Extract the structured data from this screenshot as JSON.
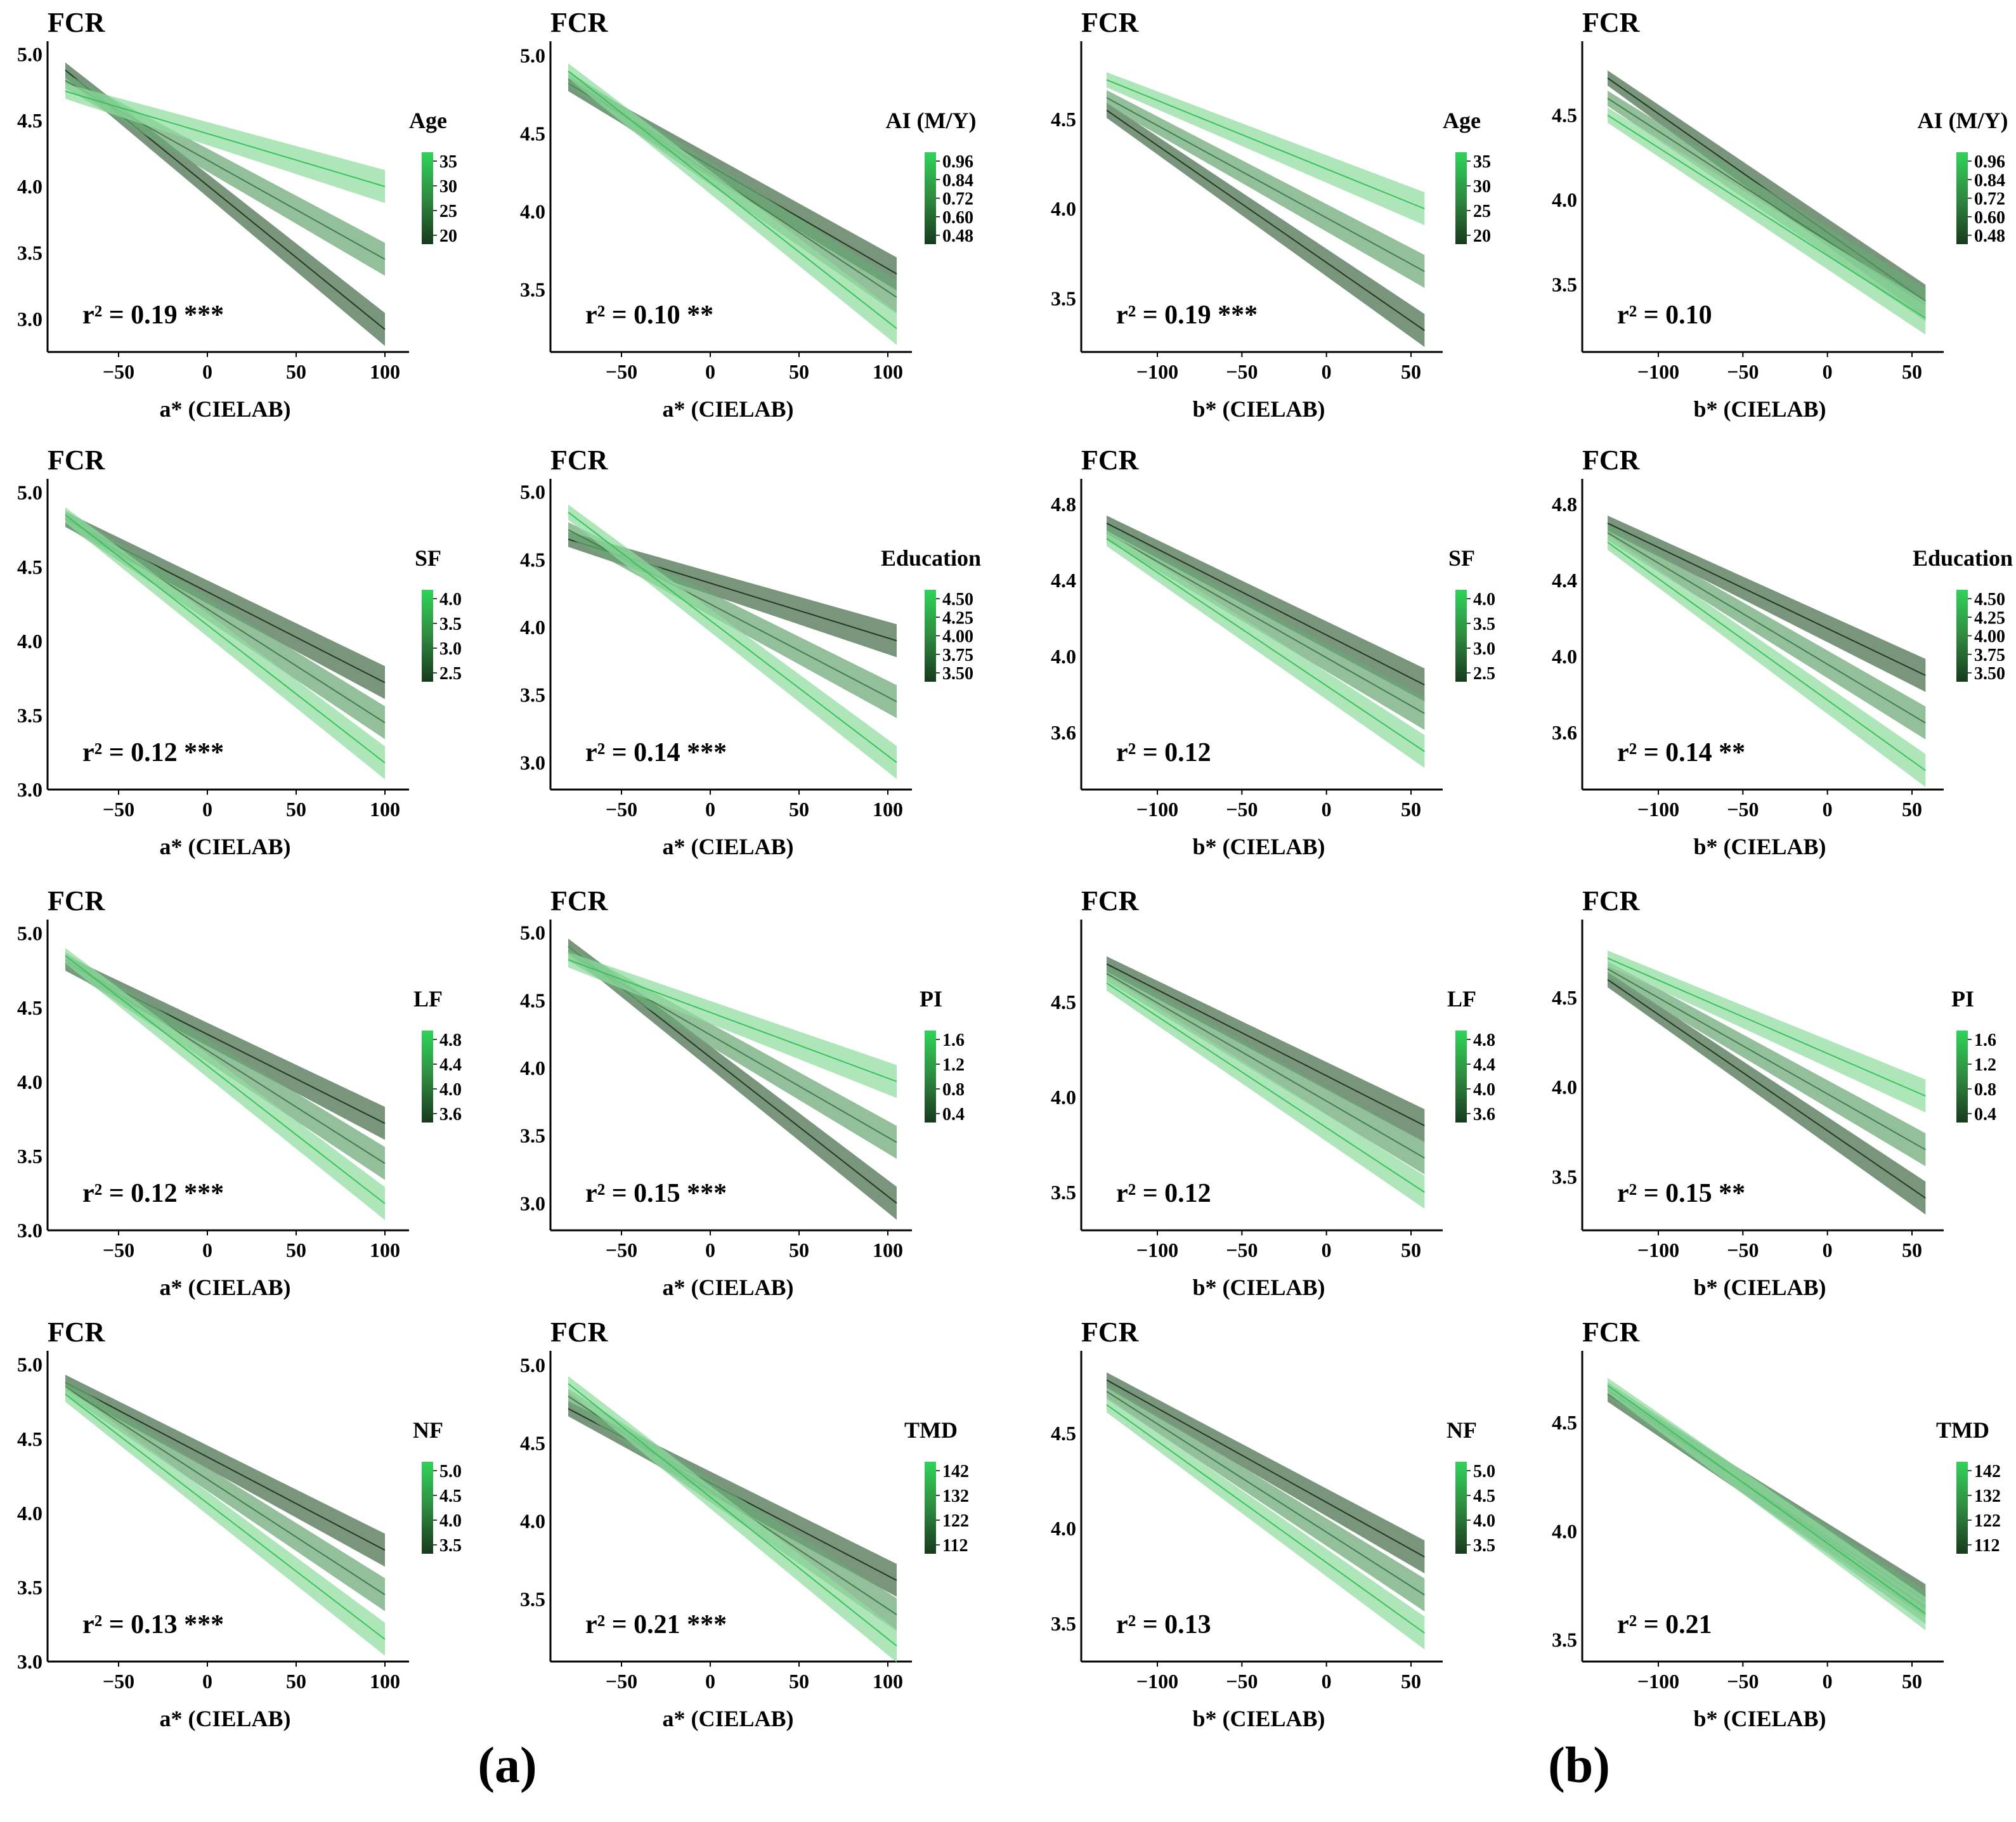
{
  "figure": {
    "panel_labels": [
      "(a)",
      "(b)"
    ],
    "colors": {
      "low": "#1f3a22",
      "mid": "#3f8048",
      "high": "#36c45a",
      "band_low": "#456e4b",
      "band_high": "#8fdc9f"
    }
  },
  "chart_data": [
    {
      "type": "line",
      "title": "FCR",
      "xlabel": "a* (CIELAB)",
      "xlim": [
        -90,
        110
      ],
      "xticks": [
        -50,
        0,
        50,
        100
      ],
      "ylim": [
        2.75,
        5.05
      ],
      "yticks": [
        3.0,
        3.5,
        4.0,
        4.5,
        5.0
      ],
      "moderator": "Age",
      "cb_ticks": [
        "35",
        "30",
        "25",
        "20"
      ],
      "stat": "r² = 0.19 ***",
      "series": [
        {
          "name": "low",
          "x": [
            -80,
            100
          ],
          "y": [
            4.88,
            2.92
          ]
        },
        {
          "name": "mid",
          "x": [
            -80,
            100
          ],
          "y": [
            4.8,
            3.45
          ]
        },
        {
          "name": "high",
          "x": [
            -80,
            100
          ],
          "y": [
            4.72,
            4.0
          ]
        }
      ]
    },
    {
      "type": "line",
      "title": "FCR",
      "xlabel": "a* (CIELAB)",
      "xlim": [
        -90,
        110
      ],
      "xticks": [
        -50,
        0,
        50,
        100
      ],
      "ylim": [
        3.1,
        5.05
      ],
      "yticks": [
        3.5,
        4.0,
        4.5,
        5.0
      ],
      "moderator": "AI (M/Y)",
      "cb_ticks": [
        "0.96",
        "0.84",
        "0.72",
        "0.60",
        "0.48"
      ],
      "stat": "r² = 0.10 **",
      "series": [
        {
          "name": "low",
          "x": [
            -80,
            105
          ],
          "y": [
            4.82,
            3.6
          ]
        },
        {
          "name": "mid",
          "x": [
            -80,
            105
          ],
          "y": [
            4.85,
            3.45
          ]
        },
        {
          "name": "high",
          "x": [
            -80,
            105
          ],
          "y": [
            4.9,
            3.25
          ]
        }
      ]
    },
    {
      "type": "line",
      "title": "FCR",
      "xlabel": "b* (CIELAB)",
      "xlim": [
        -145,
        65
      ],
      "xticks": [
        -100,
        -50,
        0,
        50
      ],
      "ylim": [
        3.2,
        4.9
      ],
      "yticks": [
        3.5,
        4.0,
        4.5
      ],
      "moderator": "Age",
      "cb_ticks": [
        "35",
        "30",
        "25",
        "20"
      ],
      "stat": "r² = 0.19 ***",
      "series": [
        {
          "name": "low",
          "x": [
            -130,
            58
          ],
          "y": [
            4.55,
            3.32
          ]
        },
        {
          "name": "mid",
          "x": [
            -130,
            58
          ],
          "y": [
            4.62,
            3.65
          ]
        },
        {
          "name": "high",
          "x": [
            -130,
            58
          ],
          "y": [
            4.72,
            4.0
          ]
        }
      ]
    },
    {
      "type": "line",
      "title": "FCR",
      "xlabel": "b* (CIELAB)",
      "xlim": [
        -145,
        65
      ],
      "xticks": [
        -100,
        -50,
        0,
        50
      ],
      "ylim": [
        3.1,
        4.9
      ],
      "yticks": [
        3.5,
        4.0,
        4.5
      ],
      "moderator": "AI (M/Y)",
      "cb_ticks": [
        "0.96",
        "0.84",
        "0.72",
        "0.60",
        "0.48"
      ],
      "stat": "r² = 0.10",
      "series": [
        {
          "name": "low",
          "x": [
            -130,
            58
          ],
          "y": [
            4.72,
            3.4
          ]
        },
        {
          "name": "mid",
          "x": [
            -130,
            58
          ],
          "y": [
            4.6,
            3.38
          ]
        },
        {
          "name": "high",
          "x": [
            -130,
            58
          ],
          "y": [
            4.5,
            3.3
          ]
        }
      ]
    },
    {
      "type": "line",
      "title": "FCR",
      "xlabel": "a* (CIELAB)",
      "xlim": [
        -90,
        110
      ],
      "xticks": [
        -50,
        0,
        50,
        100
      ],
      "ylim": [
        3.0,
        5.05
      ],
      "yticks": [
        3.0,
        3.5,
        4.0,
        4.5,
        5.0
      ],
      "moderator": "SF",
      "cb_ticks": [
        "4.0",
        "3.5",
        "3.0",
        "2.5"
      ],
      "stat": "r² = 0.12 ***",
      "series": [
        {
          "name": "low",
          "x": [
            -80,
            100
          ],
          "y": [
            4.82,
            3.72
          ]
        },
        {
          "name": "mid",
          "x": [
            -80,
            100
          ],
          "y": [
            4.83,
            3.45
          ]
        },
        {
          "name": "high",
          "x": [
            -80,
            100
          ],
          "y": [
            4.85,
            3.18
          ]
        }
      ]
    },
    {
      "type": "line",
      "title": "FCR",
      "xlabel": "a* (CIELAB)",
      "xlim": [
        -90,
        110
      ],
      "xticks": [
        -50,
        0,
        50,
        100
      ],
      "ylim": [
        2.8,
        5.05
      ],
      "yticks": [
        3.0,
        3.5,
        4.0,
        4.5,
        5.0
      ],
      "moderator": "Education",
      "cb_ticks": [
        "4.50",
        "4.25",
        "4.00",
        "3.75",
        "3.50"
      ],
      "stat": "r² = 0.14 ***",
      "series": [
        {
          "name": "low",
          "x": [
            -80,
            105
          ],
          "y": [
            4.65,
            3.9
          ]
        },
        {
          "name": "mid",
          "x": [
            -80,
            105
          ],
          "y": [
            4.72,
            3.45
          ]
        },
        {
          "name": "high",
          "x": [
            -80,
            105
          ],
          "y": [
            4.85,
            3.0
          ]
        }
      ]
    },
    {
      "type": "line",
      "title": "FCR",
      "xlabel": "b* (CIELAB)",
      "xlim": [
        -145,
        65
      ],
      "xticks": [
        -100,
        -50,
        0,
        50
      ],
      "ylim": [
        3.3,
        4.9
      ],
      "yticks": [
        3.6,
        4.0,
        4.4,
        4.8
      ],
      "moderator": "SF",
      "cb_ticks": [
        "4.0",
        "3.5",
        "3.0",
        "2.5"
      ],
      "stat": "r² = 0.12",
      "series": [
        {
          "name": "low",
          "x": [
            -130,
            58
          ],
          "y": [
            4.7,
            3.85
          ]
        },
        {
          "name": "mid",
          "x": [
            -130,
            58
          ],
          "y": [
            4.65,
            3.7
          ]
        },
        {
          "name": "high",
          "x": [
            -130,
            58
          ],
          "y": [
            4.62,
            3.5
          ]
        }
      ]
    },
    {
      "type": "line",
      "title": "FCR",
      "xlabel": "b* (CIELAB)",
      "xlim": [
        -145,
        65
      ],
      "xticks": [
        -100,
        -50,
        0,
        50
      ],
      "ylim": [
        3.3,
        4.9
      ],
      "yticks": [
        3.6,
        4.0,
        4.4,
        4.8
      ],
      "moderator": "Education",
      "cb_ticks": [
        "4.50",
        "4.25",
        "4.00",
        "3.75",
        "3.50"
      ],
      "stat": "r² = 0.14 **",
      "series": [
        {
          "name": "low",
          "x": [
            -130,
            58
          ],
          "y": [
            4.7,
            3.9
          ]
        },
        {
          "name": "mid",
          "x": [
            -130,
            58
          ],
          "y": [
            4.65,
            3.65
          ]
        },
        {
          "name": "high",
          "x": [
            -130,
            58
          ],
          "y": [
            4.6,
            3.4
          ]
        }
      ]
    },
    {
      "type": "line",
      "title": "FCR",
      "xlabel": "a* (CIELAB)",
      "xlim": [
        -90,
        110
      ],
      "xticks": [
        -50,
        0,
        50,
        100
      ],
      "ylim": [
        3.0,
        5.05
      ],
      "yticks": [
        3.0,
        3.5,
        4.0,
        4.5,
        5.0
      ],
      "moderator": "LF",
      "cb_ticks": [
        "4.8",
        "4.4",
        "4.0",
        "3.6"
      ],
      "stat": "r² = 0.12 ***",
      "series": [
        {
          "name": "low",
          "x": [
            -80,
            100
          ],
          "y": [
            4.8,
            3.72
          ]
        },
        {
          "name": "mid",
          "x": [
            -80,
            100
          ],
          "y": [
            4.82,
            3.45
          ]
        },
        {
          "name": "high",
          "x": [
            -80,
            100
          ],
          "y": [
            4.85,
            3.18
          ]
        }
      ]
    },
    {
      "type": "line",
      "title": "FCR",
      "xlabel": "a* (CIELAB)",
      "xlim": [
        -90,
        110
      ],
      "xticks": [
        -50,
        0,
        50,
        100
      ],
      "ylim": [
        2.8,
        5.05
      ],
      "yticks": [
        3.0,
        3.5,
        4.0,
        4.5,
        5.0
      ],
      "moderator": "PI",
      "cb_ticks": [
        "1.6",
        "1.2",
        "0.8",
        "0.4"
      ],
      "stat": "r² = 0.15 ***",
      "series": [
        {
          "name": "low",
          "x": [
            -80,
            105
          ],
          "y": [
            4.9,
            3.0
          ]
        },
        {
          "name": "mid",
          "x": [
            -80,
            105
          ],
          "y": [
            4.85,
            3.45
          ]
        },
        {
          "name": "high",
          "x": [
            -80,
            105
          ],
          "y": [
            4.8,
            3.9
          ]
        }
      ]
    },
    {
      "type": "line",
      "title": "FCR",
      "xlabel": "b* (CIELAB)",
      "xlim": [
        -145,
        65
      ],
      "xticks": [
        -100,
        -50,
        0,
        50
      ],
      "ylim": [
        3.3,
        4.9
      ],
      "yticks": [
        3.5,
        4.0,
        4.5
      ],
      "moderator": "LF",
      "cb_ticks": [
        "4.8",
        "4.4",
        "4.0",
        "3.6"
      ],
      "stat": "r² = 0.12",
      "series": [
        {
          "name": "low",
          "x": [
            -130,
            58
          ],
          "y": [
            4.7,
            3.85
          ]
        },
        {
          "name": "mid",
          "x": [
            -130,
            58
          ],
          "y": [
            4.65,
            3.68
          ]
        },
        {
          "name": "high",
          "x": [
            -130,
            58
          ],
          "y": [
            4.6,
            3.5
          ]
        }
      ]
    },
    {
      "type": "line",
      "title": "FCR",
      "xlabel": "b* (CIELAB)",
      "xlim": [
        -145,
        65
      ],
      "xticks": [
        -100,
        -50,
        0,
        50
      ],
      "ylim": [
        3.2,
        4.9
      ],
      "yticks": [
        3.5,
        4.0,
        4.5
      ],
      "moderator": "PI",
      "cb_ticks": [
        "1.6",
        "1.2",
        "0.8",
        "0.4"
      ],
      "stat": "r² = 0.15 **",
      "series": [
        {
          "name": "low",
          "x": [
            -130,
            58
          ],
          "y": [
            4.6,
            3.38
          ]
        },
        {
          "name": "mid",
          "x": [
            -130,
            58
          ],
          "y": [
            4.66,
            3.65
          ]
        },
        {
          "name": "high",
          "x": [
            -130,
            58
          ],
          "y": [
            4.72,
            3.95
          ]
        }
      ]
    },
    {
      "type": "line",
      "title": "FCR",
      "xlabel": "a* (CIELAB)",
      "xlim": [
        -90,
        110
      ],
      "xticks": [
        -50,
        0,
        50,
        100
      ],
      "ylim": [
        3.0,
        5.05
      ],
      "yticks": [
        3.0,
        3.5,
        4.0,
        4.5,
        5.0
      ],
      "moderator": "NF",
      "cb_ticks": [
        "5.0",
        "4.5",
        "4.0",
        "3.5"
      ],
      "stat": "r² = 0.13 ***",
      "series": [
        {
          "name": "low",
          "x": [
            -80,
            100
          ],
          "y": [
            4.88,
            3.75
          ]
        },
        {
          "name": "mid",
          "x": [
            -80,
            100
          ],
          "y": [
            4.85,
            3.45
          ]
        },
        {
          "name": "high",
          "x": [
            -80,
            100
          ],
          "y": [
            4.8,
            3.15
          ]
        }
      ]
    },
    {
      "type": "line",
      "title": "FCR",
      "xlabel": "a* (CIELAB)",
      "xlim": [
        -90,
        110
      ],
      "xticks": [
        -50,
        0,
        50,
        100
      ],
      "ylim": [
        3.1,
        5.05
      ],
      "yticks": [
        3.5,
        4.0,
        4.5,
        5.0
      ],
      "moderator": "TMD",
      "cb_ticks": [
        "142",
        "132",
        "122",
        "112"
      ],
      "stat": "r² = 0.21 ***",
      "series": [
        {
          "name": "low",
          "x": [
            -80,
            105
          ],
          "y": [
            4.72,
            3.62
          ]
        },
        {
          "name": "mid",
          "x": [
            -80,
            105
          ],
          "y": [
            4.8,
            3.4
          ]
        },
        {
          "name": "high",
          "x": [
            -80,
            105
          ],
          "y": [
            4.88,
            3.2
          ]
        }
      ]
    },
    {
      "type": "line",
      "title": "FCR",
      "xlabel": "b* (CIELAB)",
      "xlim": [
        -145,
        65
      ],
      "xticks": [
        -100,
        -50,
        0,
        50
      ],
      "ylim": [
        3.3,
        4.9
      ],
      "yticks": [
        3.5,
        4.0,
        4.5
      ],
      "moderator": "NF",
      "cb_ticks": [
        "5.0",
        "4.5",
        "4.0",
        "3.5"
      ],
      "stat": "r² = 0.13",
      "series": [
        {
          "name": "low",
          "x": [
            -130,
            58
          ],
          "y": [
            4.78,
            3.85
          ]
        },
        {
          "name": "mid",
          "x": [
            -130,
            58
          ],
          "y": [
            4.72,
            3.65
          ]
        },
        {
          "name": "high",
          "x": [
            -130,
            58
          ],
          "y": [
            4.65,
            3.45
          ]
        }
      ]
    },
    {
      "type": "line",
      "title": "FCR",
      "xlabel": "b* (CIELAB)",
      "xlim": [
        -145,
        65
      ],
      "xticks": [
        -100,
        -50,
        0,
        50
      ],
      "ylim": [
        3.4,
        4.8
      ],
      "yticks": [
        3.5,
        4.0,
        4.5
      ],
      "moderator": "TMD",
      "cb_ticks": [
        "142",
        "132",
        "122",
        "112"
      ],
      "stat": "r² = 0.21",
      "series": [
        {
          "name": "low",
          "x": [
            -130,
            58
          ],
          "y": [
            4.63,
            3.68
          ]
        },
        {
          "name": "mid",
          "x": [
            -130,
            58
          ],
          "y": [
            4.65,
            3.65
          ]
        },
        {
          "name": "high",
          "x": [
            -130,
            58
          ],
          "y": [
            4.67,
            3.62
          ]
        }
      ]
    }
  ]
}
